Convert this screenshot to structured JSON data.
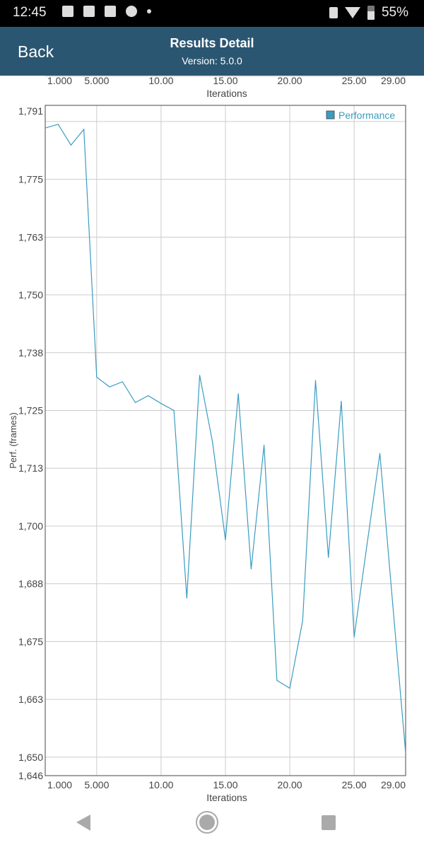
{
  "status_bar": {
    "time": "12:45",
    "battery": "55%"
  },
  "header": {
    "back_label": "Back",
    "title": "Results Detail",
    "version": "Version: 5.0.0"
  },
  "chart_data": {
    "type": "line",
    "xlabel": "Iterations",
    "ylabel": "Perf. (frames)",
    "xlim": [
      1,
      29
    ],
    "ylim": [
      1646,
      1791
    ],
    "x_ticks": [
      1,
      5,
      10,
      15,
      20,
      25,
      29
    ],
    "x_tick_labels": [
      "1.000",
      "5.000",
      "10.00",
      "15.00",
      "20.00",
      "25.00",
      "29.00"
    ],
    "y_ticks": [
      1791,
      1775,
      1762.5,
      1750,
      1737.5,
      1725,
      1712.5,
      1700,
      1687.5,
      1675,
      1662.5,
      1650,
      1646
    ],
    "y_tick_labels": [
      "1,791",
      "1,775",
      "1,763",
      "1,750",
      "1,738",
      "1,725",
      "1,713",
      "1,700",
      "1,688",
      "1,675",
      "1,663",
      "1,650",
      "1,646"
    ],
    "grid": true,
    "legend_position": "top-right",
    "series": [
      {
        "name": "Performance",
        "color": "#3a9cc0",
        "x": [
          1,
          2,
          3,
          4,
          5,
          6,
          7,
          8,
          9,
          10,
          11,
          12,
          13,
          14,
          15,
          16,
          17,
          18,
          19,
          20,
          21,
          22,
          23,
          24,
          25,
          26,
          27,
          28,
          29
        ],
        "values": [
          1786.1,
          1786.9,
          1782.4,
          1785.8,
          1732.2,
          1730.1,
          1731.2,
          1726.7,
          1728.2,
          1726.5,
          1725.0,
          1684.4,
          1732.6,
          1718.1,
          1697.0,
          1728.6,
          1690.7,
          1717.5,
          1666.6,
          1664.9,
          1679.5,
          1731.5,
          1693.2,
          1727.0,
          1676.0,
          1696.0,
          1715.7,
          1683.0,
          1650.9
        ]
      }
    ]
  }
}
